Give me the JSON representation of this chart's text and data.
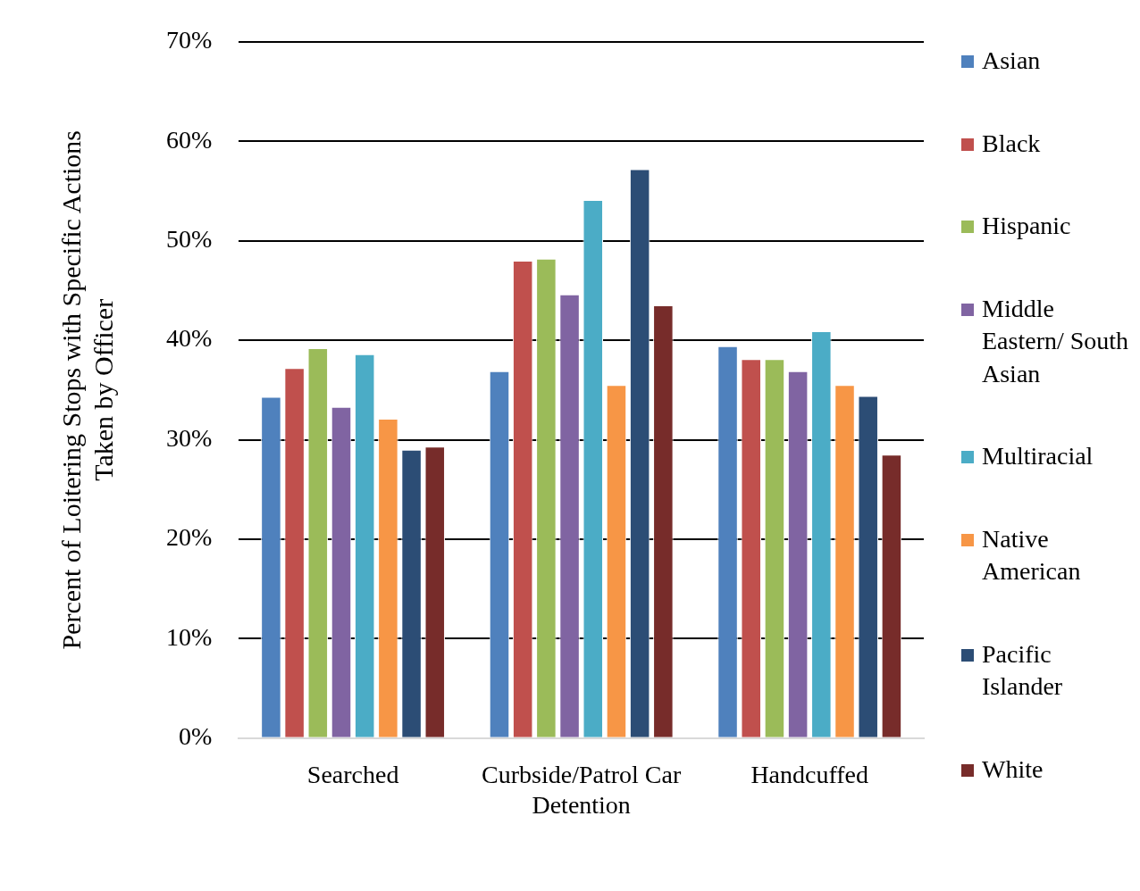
{
  "chart_data": {
    "type": "bar",
    "ylabel": "Percent of Loitering Stops with Specific Actions Taken by Officer",
    "categories": [
      "Searched",
      "Curbside/Patrol Car Detention",
      "Handcuffed"
    ],
    "series": [
      {
        "name": "Asian",
        "color": "#4f81bd",
        "values": [
          34.3,
          36.9,
          39.4
        ]
      },
      {
        "name": "Black",
        "color": "#c0504d",
        "values": [
          37.2,
          48.0,
          38.1
        ]
      },
      {
        "name": "Hispanic",
        "color": "#9bbb59",
        "values": [
          39.2,
          48.2,
          38.1
        ]
      },
      {
        "name": "Middle Eastern/ South Asian",
        "color": "#8064a2",
        "values": [
          33.3,
          44.6,
          36.9
        ]
      },
      {
        "name": "Multiracial",
        "color": "#4bacc6",
        "values": [
          38.6,
          54.1,
          40.9
        ]
      },
      {
        "name": "Native American",
        "color": "#f79646",
        "values": [
          32.1,
          35.5,
          35.5
        ]
      },
      {
        "name": "Pacific Islander",
        "color": "#2c4d75",
        "values": [
          29.0,
          57.2,
          34.4
        ]
      },
      {
        "name": "White",
        "color": "#772c2a",
        "values": [
          29.3,
          43.5,
          28.5
        ]
      }
    ],
    "ylim": [
      0,
      70
    ],
    "yticks": [
      {
        "value": 0,
        "label": "0%"
      },
      {
        "value": 10,
        "label": "10%"
      },
      {
        "value": 20,
        "label": "20%"
      },
      {
        "value": 30,
        "label": "30%"
      },
      {
        "value": 40,
        "label": "40%"
      },
      {
        "value": 50,
        "label": "50%"
      },
      {
        "value": 60,
        "label": "60%"
      },
      {
        "value": 70,
        "label": "70%"
      }
    ],
    "grid": "y",
    "legend": "right"
  }
}
